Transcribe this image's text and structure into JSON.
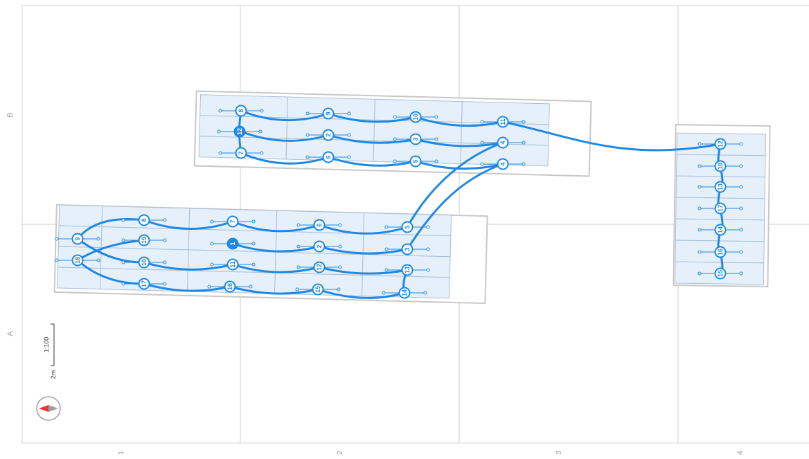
{
  "grid": {
    "columns": [
      "1",
      "2",
      "3",
      "4"
    ],
    "rows": [
      "B",
      "A"
    ]
  },
  "scale": {
    "ratio": "1:100",
    "length": "2m"
  },
  "compass": {
    "icon": "compass-icon",
    "needle_color": "#e53935"
  },
  "colors": {
    "string": "#1e88e5",
    "panel": "#e6f0fb"
  },
  "arrays": [
    {
      "id": "top-array",
      "node_labels": [
        "8",
        "9",
        "10",
        "11",
        "12",
        "2",
        "3",
        "4",
        "7",
        "6",
        "5",
        "4"
      ]
    },
    {
      "id": "left-array",
      "node_labels": [
        "8",
        "7",
        "6",
        "5",
        "9",
        "19",
        "1",
        "2",
        "3",
        "18",
        "10",
        "11",
        "12",
        "13",
        "17",
        "16",
        "15",
        "14"
      ]
    },
    {
      "id": "right-array",
      "node_labels": [
        "12",
        "18",
        "13",
        "17",
        "14",
        "16",
        "15"
      ]
    }
  ]
}
